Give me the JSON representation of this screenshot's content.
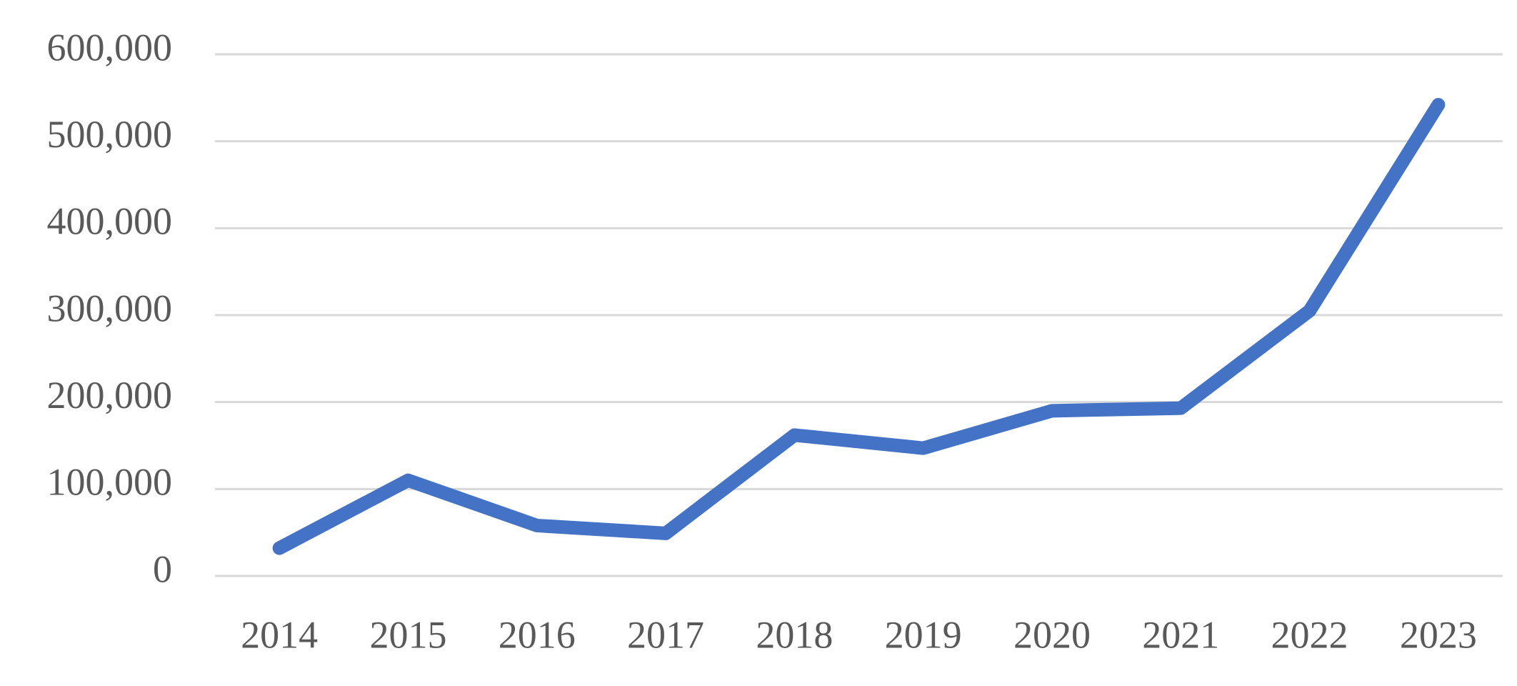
{
  "chart_data": {
    "type": "line",
    "categories": [
      "2014",
      "2015",
      "2016",
      "2017",
      "2018",
      "2019",
      "2020",
      "2021",
      "2022",
      "2023"
    ],
    "values": [
      32000,
      110000,
      58000,
      49000,
      162000,
      147000,
      190000,
      193000,
      305000,
      542000
    ],
    "color": "#4472c4",
    "ylim": [
      0,
      600000
    ],
    "yticks": [
      0,
      {
        "value": 100000,
        "label": "100,000"
      },
      {
        "value": 200000,
        "label": "200,000"
      },
      {
        "value": 300000,
        "label": "300,000"
      },
      {
        "value": 400000,
        "label": "400,000"
      },
      {
        "value": 500000,
        "label": "500,000"
      },
      {
        "value": 600000,
        "label": "600,000"
      }
    ],
    "grid": true
  }
}
